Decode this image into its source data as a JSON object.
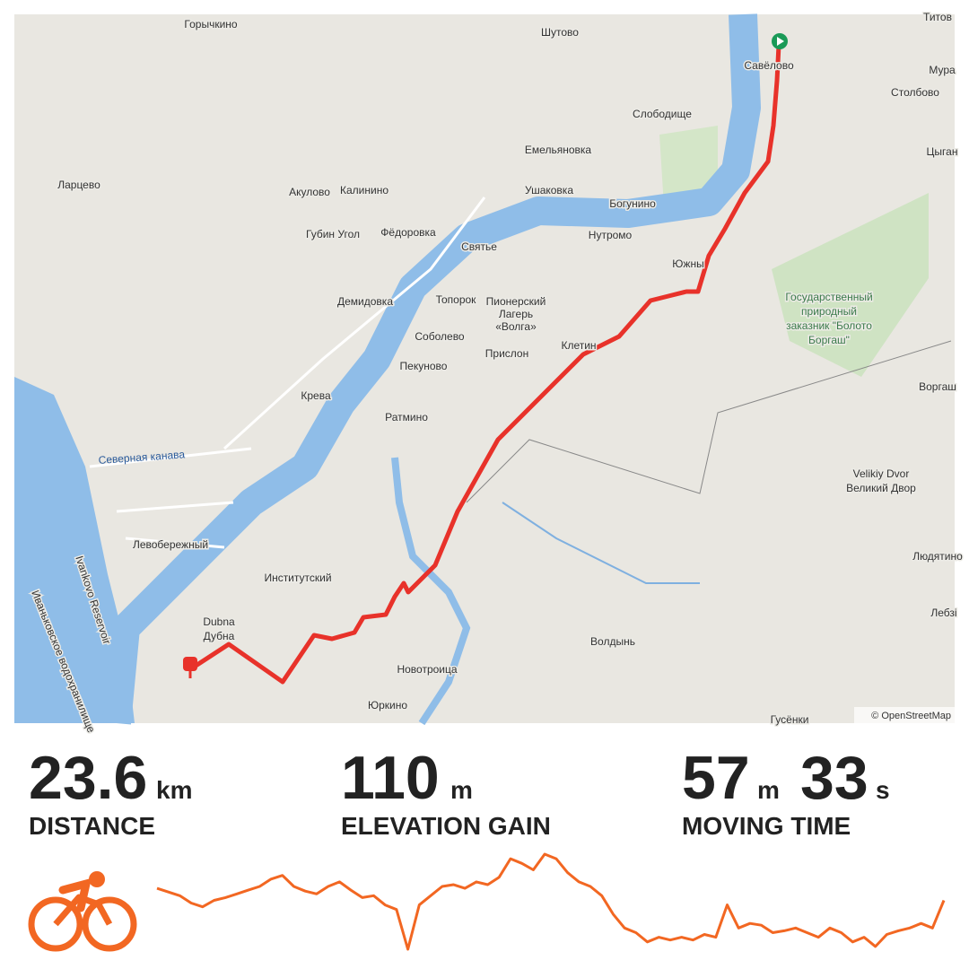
{
  "map": {
    "labels": [
      "Горычкино",
      "Шутово",
      "Титов",
      "Савёлово",
      "Мура",
      "Столбово",
      "Слободище",
      "Цыган",
      "Емельяновка",
      "Ларцево",
      "Акулово",
      "Калинино",
      "Ушаковка",
      "Богунино",
      "Губин Угол",
      "Фёдоровка",
      "Святье",
      "Нутромо",
      "Южны",
      "Государственный",
      "природный",
      "заказник \"Болото",
      "Боргаш\"",
      "Демидовка",
      "Топорок",
      "Пионерский",
      "Лагерь",
      "«Волга»",
      "Соболево",
      "Клетин",
      "Прислон",
      "Пекуново",
      "Крева",
      "Ратмино",
      "Воргаш",
      "Северная канава",
      "Velikiy Dvor",
      "Великий Двор",
      "Левобережный",
      "Институтский",
      "Dubna",
      "Дубна",
      "Людятино",
      "Лебзі",
      "Волдынь",
      "Новотроица",
      "Юркино",
      "Ivankovo Reservoir",
      "Иваньковское водохранилище",
      "Гусёнки"
    ],
    "attribution": "© OpenStreetMap"
  },
  "stats": [
    {
      "value": "23.6",
      "unit": "km",
      "label": "DISTANCE"
    },
    {
      "value": "110",
      "unit": "m",
      "label": "ELEVATION GAIN"
    },
    {
      "value": "57",
      "unit": "m",
      "value2": "33",
      "unit2": "s",
      "label": "MOVING TIME"
    }
  ],
  "elevation_profile": [
    68,
    64,
    60,
    52,
    48,
    55,
    58,
    62,
    66,
    70,
    78,
    82,
    70,
    65,
    62,
    70,
    75,
    66,
    58,
    60,
    50,
    45,
    2,
    50,
    60,
    70,
    72,
    68,
    75,
    72,
    80,
    100,
    95,
    88,
    105,
    100,
    85,
    75,
    70,
    60,
    40,
    25,
    20,
    10,
    15,
    12,
    15,
    12,
    18,
    15,
    50,
    25,
    30,
    28,
    20,
    22,
    25,
    20,
    15,
    25,
    20,
    10,
    15,
    5,
    18,
    22,
    25,
    30,
    25,
    55
  ]
}
